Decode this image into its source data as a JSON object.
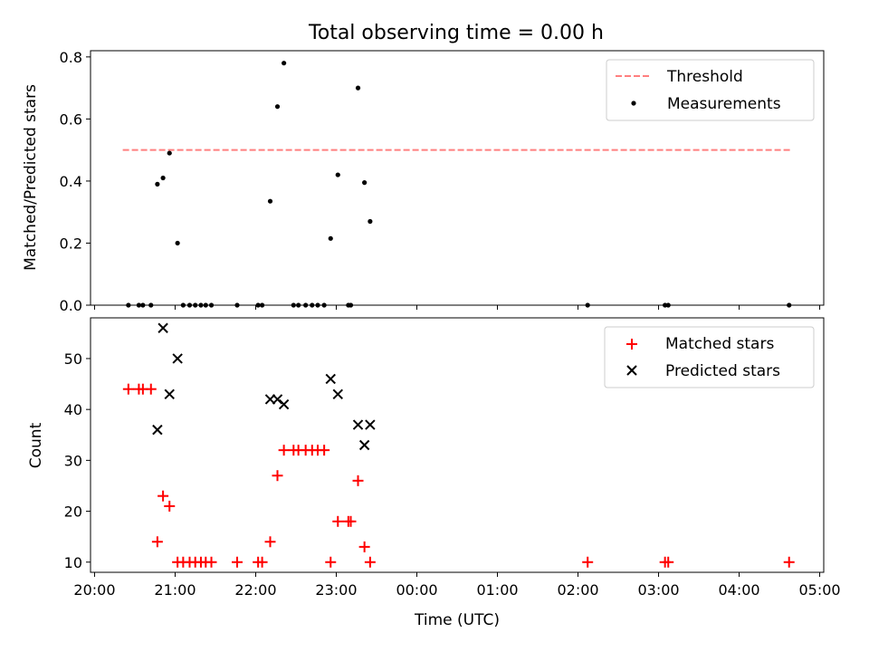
{
  "chart_data": [
    {
      "type": "scatter",
      "title": "Total observing time = 0.00 h",
      "ylabel": "Matched/Predicted stars",
      "xlabel": "",
      "xlim": [
        19.95,
        29.05
      ],
      "ylim": [
        0,
        0.82
      ],
      "yticks": [
        0.0,
        0.2,
        0.4,
        0.6,
        0.8
      ],
      "legend": {
        "placement": "upper-right"
      },
      "grid": false,
      "series": [
        {
          "name": "Threshold",
          "kind": "line",
          "style": "dashed",
          "color": "#ff7f7f",
          "x": [
            20.35,
            28.65
          ],
          "y": [
            0.5,
            0.5
          ]
        },
        {
          "name": "Measurements",
          "kind": "scatter",
          "marker": "dot",
          "color": "#000000",
          "x": [
            20.42,
            20.55,
            20.6,
            20.7,
            20.78,
            20.85,
            20.93,
            21.03,
            21.1,
            21.18,
            21.25,
            21.32,
            21.38,
            21.45,
            21.77,
            22.03,
            22.08,
            22.18,
            22.27,
            22.35,
            22.47,
            22.53,
            22.62,
            22.7,
            22.77,
            22.85,
            22.93,
            23.02,
            23.15,
            23.18,
            23.27,
            23.35,
            23.42,
            26.12,
            27.08,
            27.12,
            28.62
          ],
          "y": [
            0,
            0,
            0,
            0,
            0.39,
            0.41,
            0.49,
            0.2,
            0,
            0,
            0,
            0,
            0,
            0,
            0,
            0,
            0,
            0.335,
            0.64,
            0.78,
            0,
            0,
            0,
            0,
            0,
            0,
            0.215,
            0.42,
            0,
            0,
            0.7,
            0.395,
            0.27,
            0,
            0,
            0,
            0
          ]
        }
      ]
    },
    {
      "type": "scatter",
      "title": "",
      "ylabel": "Count",
      "xlabel": "Time (UTC)",
      "xlim": [
        19.95,
        29.05
      ],
      "ylim": [
        8,
        58
      ],
      "yticks": [
        10,
        20,
        30,
        40,
        50
      ],
      "xticks": [
        20,
        21,
        22,
        23,
        24,
        25,
        26,
        27,
        28,
        29
      ],
      "xticklabels": [
        "20:00",
        "21:00",
        "22:00",
        "23:00",
        "00:00",
        "01:00",
        "02:00",
        "03:00",
        "04:00",
        "05:00"
      ],
      "legend": {
        "placement": "upper-right"
      },
      "grid": false,
      "series": [
        {
          "name": "Matched stars",
          "kind": "scatter",
          "marker": "plus",
          "color": "#ff0000",
          "x": [
            20.42,
            20.55,
            20.6,
            20.7,
            20.78,
            20.85,
            20.93,
            21.03,
            21.1,
            21.18,
            21.25,
            21.32,
            21.38,
            21.45,
            21.77,
            22.03,
            22.08,
            22.18,
            22.27,
            22.35,
            22.47,
            22.53,
            22.62,
            22.7,
            22.77,
            22.85,
            22.93,
            23.02,
            23.15,
            23.18,
            23.27,
            23.35,
            23.42,
            26.12,
            27.08,
            27.12,
            28.62
          ],
          "y": [
            44,
            44,
            44,
            44,
            14,
            23,
            21,
            10,
            10,
            10,
            10,
            10,
            10,
            10,
            10,
            10,
            10,
            14,
            27,
            32,
            32,
            32,
            32,
            32,
            32,
            32,
            10,
            18,
            18,
            18,
            26,
            13,
            10,
            10,
            10,
            10,
            10
          ]
        },
        {
          "name": "Predicted stars",
          "kind": "scatter",
          "marker": "x",
          "color": "#000000",
          "x": [
            20.78,
            20.85,
            20.93,
            21.03,
            22.18,
            22.27,
            22.35,
            22.93,
            23.02,
            23.27,
            23.35,
            23.42
          ],
          "y": [
            36,
            56,
            43,
            50,
            42,
            42,
            41,
            46,
            43,
            37,
            33,
            37
          ]
        }
      ]
    }
  ]
}
